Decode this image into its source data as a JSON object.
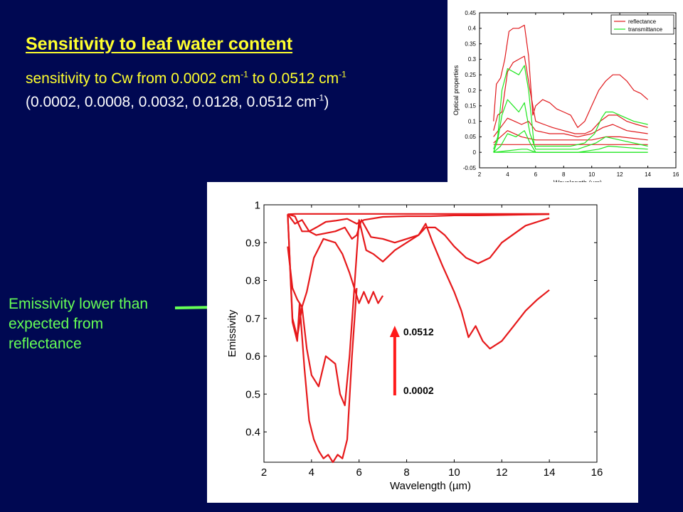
{
  "slide": {
    "title": "Sensitivity to leaf water content",
    "line1": [
      "sensitivity to Cw from 0.0002  cm",
      "-1",
      " to 0.0512  cm",
      "-1"
    ],
    "line2": [
      "(0.0002, 0.0008, 0.0032, 0.0128, 0.0512 cm",
      "-1",
      ")"
    ],
    "annotation": "Emissivity lower than expected from reflectance",
    "colors": {
      "background": "#000852",
      "title": "#ffff2e",
      "annotation": "#66ff55",
      "arrow": "#ff1a1a"
    }
  },
  "chart_data": [
    {
      "type": "line",
      "xlabel": "Wavelength (µm)",
      "ylabel": "Optical properties",
      "xlim": [
        2,
        16
      ],
      "ylim": [
        -0.05,
        0.45
      ],
      "xticks": [
        2,
        4,
        6,
        8,
        10,
        12,
        14,
        16
      ],
      "yticks": [
        -0.05,
        0,
        0.05,
        0.1,
        0.15,
        0.2,
        0.25,
        0.3,
        0.35,
        0.4,
        0.45
      ],
      "legend": {
        "placement": "top-right",
        "entries": [
          "reflectance",
          "transmittance"
        ]
      },
      "grid": false,
      "series": [
        {
          "name": "reflectance",
          "color": "#e0191c",
          "x": [
            3.0,
            3.2,
            3.5,
            3.8,
            4.1,
            4.4,
            4.8,
            5.2,
            5.5,
            5.8,
            6.0,
            6.5,
            7.0,
            7.5,
            8.0,
            8.5,
            9.0,
            9.5,
            10.0,
            10.5,
            11.0,
            11.5,
            12.0,
            12.5,
            13.0,
            13.5,
            14.0
          ],
          "y": [
            0.1,
            0.22,
            0.24,
            0.3,
            0.39,
            0.4,
            0.4,
            0.41,
            0.31,
            0.12,
            0.15,
            0.17,
            0.16,
            0.14,
            0.13,
            0.12,
            0.08,
            0.1,
            0.15,
            0.2,
            0.23,
            0.25,
            0.25,
            0.23,
            0.2,
            0.19,
            0.17
          ]
        },
        {
          "name": "reflectance",
          "color": "#e0191c",
          "x": [
            3.0,
            3.3,
            3.6,
            4.0,
            4.4,
            4.8,
            5.2,
            5.6,
            6.0,
            6.6,
            7.2,
            8.0,
            8.8,
            9.5,
            10.0,
            10.6,
            11.2,
            11.8,
            12.5,
            13.2,
            14.0
          ],
          "y": [
            0.07,
            0.12,
            0.13,
            0.26,
            0.29,
            0.3,
            0.31,
            0.2,
            0.1,
            0.09,
            0.08,
            0.07,
            0.06,
            0.06,
            0.07,
            0.1,
            0.12,
            0.12,
            0.1,
            0.09,
            0.08
          ]
        },
        {
          "name": "reflectance",
          "color": "#e0191c",
          "x": [
            3.0,
            3.5,
            4.0,
            4.5,
            5.0,
            5.5,
            6.0,
            7.0,
            8.0,
            9.0,
            10.0,
            10.8,
            11.5,
            12.5,
            14.0
          ],
          "y": [
            0.05,
            0.08,
            0.11,
            0.1,
            0.09,
            0.1,
            0.07,
            0.06,
            0.06,
            0.05,
            0.06,
            0.08,
            0.09,
            0.07,
            0.06
          ]
        },
        {
          "name": "reflectance",
          "color": "#e0191c",
          "x": [
            3.0,
            3.5,
            4.0,
            5.0,
            6.0,
            8.0,
            10.0,
            11.0,
            12.0,
            14.0
          ],
          "y": [
            0.03,
            0.05,
            0.07,
            0.05,
            0.04,
            0.04,
            0.04,
            0.05,
            0.05,
            0.04
          ]
        },
        {
          "name": "reflectance",
          "color": "#e0191c",
          "x": [
            3.0,
            14.0
          ],
          "y": [
            0.025,
            0.025
          ]
        },
        {
          "name": "transmittance",
          "color": "#1ee61e",
          "x": [
            3.0,
            3.3,
            3.6,
            4.0,
            4.4,
            4.8,
            5.2,
            5.5,
            5.9,
            6.5,
            7.5,
            8.5,
            9.5,
            10.2,
            10.7,
            11.0,
            11.5,
            12.0,
            13.0,
            14.0
          ],
          "y": [
            0.01,
            0.05,
            0.2,
            0.27,
            0.26,
            0.25,
            0.28,
            0.2,
            0.02,
            0.02,
            0.02,
            0.02,
            0.03,
            0.06,
            0.11,
            0.13,
            0.13,
            0.12,
            0.1,
            0.09
          ]
        },
        {
          "name": "transmittance",
          "color": "#1ee61e",
          "x": [
            3.0,
            3.3,
            3.6,
            4.0,
            4.4,
            4.8,
            5.2,
            5.6,
            6.0,
            7.0,
            9.0,
            10.3,
            11.0,
            12.0,
            14.0
          ],
          "y": [
            0.0,
            0.04,
            0.12,
            0.17,
            0.15,
            0.13,
            0.16,
            0.06,
            0.01,
            0.01,
            0.01,
            0.03,
            0.05,
            0.04,
            0.02
          ]
        },
        {
          "name": "transmittance",
          "color": "#1ee61e",
          "x": [
            3.0,
            3.5,
            4.0,
            4.6,
            5.2,
            5.6,
            6.0,
            9.0,
            10.5,
            11.2,
            14.0
          ],
          "y": [
            0.0,
            0.02,
            0.06,
            0.05,
            0.07,
            0.03,
            0.0,
            0.0,
            0.01,
            0.02,
            0.01
          ]
        },
        {
          "name": "transmittance",
          "color": "#1ee61e",
          "x": [
            3.0,
            4.0,
            5.0,
            5.4,
            6.0,
            14.0
          ],
          "y": [
            0.0,
            0.005,
            0.01,
            0.01,
            0.0,
            0.0
          ]
        },
        {
          "name": "transmittance",
          "color": "#1ee61e",
          "x": [
            3.0,
            14.0
          ],
          "y": [
            0.0,
            0.0
          ]
        }
      ]
    },
    {
      "type": "line",
      "xlabel": "Wavelength (µm)",
      "ylabel": "Emissivity",
      "xlim": [
        2,
        16
      ],
      "ylim": [
        0.32,
        1.0
      ],
      "xticks": [
        2,
        4,
        6,
        8,
        10,
        12,
        14,
        16
      ],
      "yticks": [
        0.4,
        0.5,
        0.6,
        0.7,
        0.8,
        0.9,
        1
      ],
      "grid": false,
      "annotations": [
        {
          "text": "0.0512",
          "x": 7.5,
          "y": 0.665,
          "position": "top of arrow"
        },
        {
          "text": "0.0002",
          "x": 7.5,
          "y": 0.51,
          "position": "bottom of arrow"
        }
      ],
      "series": [
        {
          "color": "#e6191b",
          "x": [
            3.0,
            3.3,
            3.6,
            4.0,
            5.0,
            6.0,
            7.0,
            8.0,
            10.0,
            12.0,
            14.0
          ],
          "y": [
            0.975,
            0.976,
            0.976,
            0.976,
            0.976,
            0.976,
            0.976,
            0.976,
            0.976,
            0.976,
            0.976
          ]
        },
        {
          "color": "#e6191b",
          "x": [
            3.0,
            3.3,
            3.6,
            3.9,
            4.2,
            4.6,
            5.0,
            5.5,
            5.9,
            6.2,
            7.0,
            8.0,
            9.0,
            10.0,
            11.0,
            12.0,
            13.0,
            14.0
          ],
          "y": [
            0.975,
            0.95,
            0.96,
            0.93,
            0.94,
            0.955,
            0.958,
            0.963,
            0.95,
            0.96,
            0.968,
            0.97,
            0.97,
            0.972,
            0.972,
            0.973,
            0.974,
            0.975
          ]
        },
        {
          "color": "#e6191b",
          "x": [
            3.0,
            3.3,
            3.6,
            3.9,
            4.2,
            4.6,
            5.0,
            5.4,
            5.7,
            5.9,
            6.1,
            6.5,
            7.0,
            7.5,
            8.0,
            8.5,
            8.8,
            9.2,
            9.6,
            10.0,
            10.5,
            11.0,
            11.5,
            12.0,
            13.0,
            14.0
          ],
          "y": [
            0.975,
            0.97,
            0.93,
            0.93,
            0.92,
            0.925,
            0.93,
            0.94,
            0.91,
            0.92,
            0.96,
            0.915,
            0.91,
            0.9,
            0.91,
            0.92,
            0.94,
            0.94,
            0.92,
            0.89,
            0.86,
            0.845,
            0.86,
            0.9,
            0.945,
            0.965
          ]
        },
        {
          "color": "#e6191b",
          "x": [
            3.0,
            3.2,
            3.4,
            3.6,
            3.8,
            4.1,
            4.5,
            5.0,
            5.3,
            5.6,
            5.8,
            6.0,
            6.3,
            6.6,
            7.0,
            7.5,
            8.0,
            8.5,
            8.8,
            9.1,
            9.5,
            10.0,
            10.3,
            10.6,
            10.9,
            11.2,
            11.5,
            12.0,
            12.5,
            13.0,
            13.5,
            14.0
          ],
          "y": [
            0.89,
            0.78,
            0.75,
            0.73,
            0.77,
            0.86,
            0.91,
            0.9,
            0.87,
            0.82,
            0.78,
            0.96,
            0.88,
            0.87,
            0.85,
            0.88,
            0.9,
            0.92,
            0.95,
            0.9,
            0.84,
            0.77,
            0.72,
            0.65,
            0.68,
            0.64,
            0.62,
            0.64,
            0.68,
            0.72,
            0.75,
            0.775
          ]
        },
        {
          "color": "#e6191b",
          "x": [
            3.0,
            3.2,
            3.4,
            3.6,
            3.8,
            4.0,
            4.3,
            4.6,
            5.0,
            5.2,
            5.4,
            5.6,
            5.8,
            6.0,
            6.2,
            6.4,
            6.6,
            6.8,
            7.0
          ],
          "y": [
            0.975,
            0.7,
            0.65,
            0.73,
            0.62,
            0.55,
            0.52,
            0.6,
            0.58,
            0.5,
            0.47,
            0.6,
            0.78,
            0.74,
            0.77,
            0.74,
            0.77,
            0.74,
            0.76
          ]
        },
        {
          "color": "#e6191b",
          "x": [
            3.0,
            3.2,
            3.4,
            3.5,
            3.7,
            3.9,
            4.1,
            4.3,
            4.5,
            4.7,
            4.9,
            5.1,
            5.3,
            5.5,
            5.7,
            5.9
          ],
          "y": [
            0.975,
            0.69,
            0.64,
            0.74,
            0.57,
            0.43,
            0.38,
            0.35,
            0.33,
            0.34,
            0.32,
            0.34,
            0.33,
            0.38,
            0.6,
            0.78
          ]
        }
      ]
    }
  ]
}
